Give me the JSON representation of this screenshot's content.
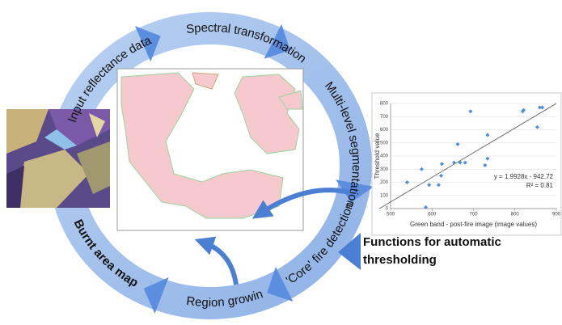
{
  "cycle_steps": [
    "Input reflectance data",
    "Spectral transformation",
    "Multi-level segmentation",
    "'Core' fire detection",
    "Region growin",
    "Burnt area map"
  ],
  "side_note": {
    "line1": "Functions for automatic",
    "line2": "thresholding"
  },
  "chart_data": {
    "type": "scatter",
    "x_label": "Green band - post-fire image (image values)",
    "y_label": "Threshold value",
    "x": [
      540,
      575,
      585,
      593,
      616,
      622,
      624,
      653,
      662,
      668,
      680,
      693,
      728,
      734,
      734,
      819,
      821,
      854,
      860,
      866
    ],
    "values": [
      200,
      300,
      10,
      180,
      180,
      250,
      340,
      350,
      490,
      350,
      350,
      740,
      330,
      560,
      380,
      740,
      750,
      620,
      770,
      770
    ],
    "color": "#4f8fd6",
    "xlim": [
      500,
      900
    ],
    "ylim": [
      0,
      800
    ],
    "xticks": [
      500,
      600,
      700,
      800,
      900
    ],
    "yticks": [
      0,
      100,
      200,
      300,
      400,
      500,
      600,
      700,
      800
    ],
    "grid": true,
    "trendline": {
      "equation": "y = 1.9928x - 942.72",
      "slope": 1.9928,
      "intercept": -942.72,
      "r_squared_label": "R² = 0.81"
    }
  }
}
